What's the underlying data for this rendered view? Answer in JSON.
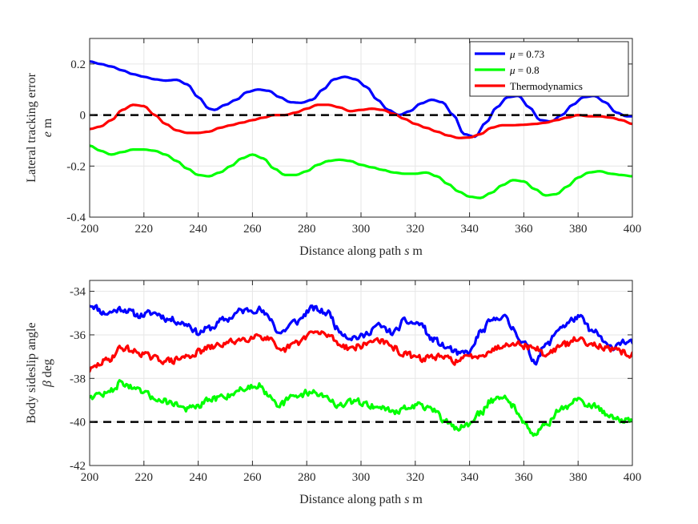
{
  "chart_data": [
    {
      "type": "line",
      "xlabel": "Distance along path",
      "xlabel_symbol": "s",
      "xlabel_unit": "m",
      "ylabel": "Lateral tracking error",
      "ylabel_symbol": "e",
      "ylabel_unit": "m",
      "xlim": [
        200,
        400
      ],
      "ylim": [
        -0.4,
        0.3
      ],
      "xticks": [
        200,
        220,
        240,
        260,
        280,
        300,
        320,
        340,
        360,
        380,
        400
      ],
      "xtick_labels": [
        "200",
        "220",
        "240",
        "260",
        "280",
        "300",
        "320",
        "340",
        "360",
        "380",
        "400"
      ],
      "yticks": [
        -0.4,
        -0.2,
        0,
        0.2
      ],
      "ytick_labels": [
        "-0.4",
        "-0.2",
        "0",
        "0.2"
      ],
      "grid": true,
      "legend_position": "top-right",
      "reference_line": {
        "y": 0,
        "style": "dashed",
        "color": "#000000"
      },
      "series": [
        {
          "name": "μ = 0.73",
          "legend_symbol": "μ",
          "legend_rest": " = 0.73",
          "color": "#0000ff",
          "x": [
            200,
            204,
            208,
            212,
            216,
            220,
            224,
            228,
            232,
            236,
            240,
            244,
            246,
            250,
            254,
            258,
            262,
            266,
            270,
            274,
            278,
            282,
            286,
            290,
            294,
            298,
            302,
            306,
            310,
            314,
            318,
            322,
            326,
            330,
            334,
            338,
            342,
            346,
            350,
            354,
            358,
            362,
            366,
            370,
            374,
            378,
            382,
            386,
            390,
            394,
            398,
            400
          ],
          "y": [
            0.21,
            0.2,
            0.19,
            0.175,
            0.16,
            0.15,
            0.14,
            0.135,
            0.138,
            0.12,
            0.07,
            0.025,
            0.02,
            0.04,
            0.06,
            0.09,
            0.1,
            0.095,
            0.07,
            0.05,
            0.048,
            0.06,
            0.1,
            0.14,
            0.15,
            0.14,
            0.11,
            0.06,
            0.02,
            0.0,
            0.015,
            0.045,
            0.06,
            0.05,
            0.0,
            -0.075,
            -0.085,
            -0.03,
            0.03,
            0.07,
            0.075,
            0.03,
            -0.02,
            -0.025,
            0.0,
            0.04,
            0.07,
            0.075,
            0.05,
            0.01,
            -0.005,
            -0.005
          ]
        },
        {
          "name": "μ = 0.8",
          "legend_symbol": "μ",
          "legend_rest": " = 0.8",
          "color": "#00ff00",
          "x": [
            200,
            204,
            208,
            212,
            216,
            220,
            224,
            228,
            232,
            236,
            240,
            244,
            248,
            252,
            256,
            260,
            264,
            268,
            272,
            276,
            280,
            284,
            288,
            292,
            296,
            300,
            304,
            308,
            312,
            316,
            320,
            324,
            328,
            332,
            336,
            340,
            344,
            348,
            352,
            356,
            360,
            364,
            368,
            372,
            376,
            380,
            384,
            388,
            392,
            396,
            400
          ],
          "y": [
            -0.12,
            -0.14,
            -0.155,
            -0.145,
            -0.135,
            -0.135,
            -0.14,
            -0.155,
            -0.18,
            -0.21,
            -0.235,
            -0.24,
            -0.225,
            -0.2,
            -0.17,
            -0.155,
            -0.17,
            -0.21,
            -0.235,
            -0.235,
            -0.22,
            -0.195,
            -0.18,
            -0.175,
            -0.18,
            -0.195,
            -0.205,
            -0.215,
            -0.225,
            -0.23,
            -0.23,
            -0.225,
            -0.24,
            -0.27,
            -0.3,
            -0.32,
            -0.325,
            -0.305,
            -0.275,
            -0.255,
            -0.26,
            -0.29,
            -0.315,
            -0.31,
            -0.28,
            -0.245,
            -0.225,
            -0.22,
            -0.23,
            -0.235,
            -0.24
          ]
        },
        {
          "name": "Thermodynamics",
          "legend_symbol": "",
          "legend_rest": "Thermodynamics",
          "color": "#ff0000",
          "x": [
            200,
            204,
            208,
            212,
            216,
            220,
            224,
            228,
            232,
            236,
            240,
            244,
            248,
            252,
            256,
            260,
            264,
            268,
            272,
            276,
            280,
            284,
            288,
            292,
            296,
            300,
            304,
            308,
            312,
            316,
            320,
            324,
            328,
            332,
            336,
            340,
            344,
            348,
            352,
            356,
            360,
            364,
            368,
            372,
            376,
            380,
            384,
            388,
            392,
            396,
            400
          ],
          "y": [
            -0.055,
            -0.045,
            -0.02,
            0.02,
            0.04,
            0.035,
            0.0,
            -0.035,
            -0.06,
            -0.07,
            -0.07,
            -0.065,
            -0.05,
            -0.04,
            -0.03,
            -0.02,
            -0.01,
            0.0,
            0.0,
            0.01,
            0.025,
            0.04,
            0.04,
            0.03,
            0.015,
            0.02,
            0.025,
            0.02,
            0.005,
            -0.015,
            -0.035,
            -0.05,
            -0.065,
            -0.08,
            -0.09,
            -0.088,
            -0.075,
            -0.05,
            -0.04,
            -0.04,
            -0.038,
            -0.035,
            -0.03,
            -0.02,
            -0.01,
            0.0,
            -0.005,
            -0.005,
            -0.01,
            -0.02,
            -0.035
          ]
        }
      ]
    },
    {
      "type": "line",
      "xlabel": "Distance along path",
      "xlabel_symbol": "s",
      "xlabel_unit": "m",
      "ylabel": "Body sideslip angle",
      "ylabel_symbol": "β",
      "ylabel_unit": "deg",
      "xlim": [
        200,
        400
      ],
      "ylim": [
        -42,
        -33.5
      ],
      "xticks": [
        200,
        220,
        240,
        260,
        280,
        300,
        320,
        340,
        360,
        380,
        400
      ],
      "xtick_labels": [
        "200",
        "220",
        "240",
        "260",
        "280",
        "300",
        "320",
        "340",
        "360",
        "380",
        "400"
      ],
      "yticks": [
        -42,
        -40,
        -38,
        -36,
        -34
      ],
      "ytick_labels": [
        "-42",
        "-40",
        "-38",
        "-36",
        "-34"
      ],
      "grid": true,
      "reference_line": {
        "y": -40,
        "style": "dashed",
        "color": "#000000"
      },
      "series": [
        {
          "name": "μ = 0.73",
          "color": "#0000ff",
          "noise": 0.22,
          "seed": 11,
          "x": [
            200,
            206,
            212,
            218,
            224,
            230,
            236,
            240,
            244,
            250,
            256,
            262,
            266,
            270,
            276,
            282,
            288,
            292,
            296,
            300,
            306,
            312,
            316,
            322,
            326,
            332,
            336,
            340,
            344,
            348,
            352,
            356,
            360,
            364,
            368,
            374,
            380,
            386,
            392,
            396,
            400
          ],
          "y": [
            -34.6,
            -35.0,
            -34.8,
            -35.1,
            -35.0,
            -35.3,
            -35.5,
            -35.9,
            -35.7,
            -35.3,
            -34.9,
            -34.8,
            -35.2,
            -35.9,
            -35.4,
            -34.8,
            -35.0,
            -35.8,
            -36.1,
            -36.1,
            -35.6,
            -35.9,
            -35.4,
            -35.5,
            -36.2,
            -36.6,
            -36.9,
            -36.8,
            -35.9,
            -35.4,
            -35.1,
            -35.7,
            -36.4,
            -37.2,
            -36.5,
            -35.6,
            -35.2,
            -35.9,
            -36.6,
            -36.3,
            -36.4
          ]
        },
        {
          "name": "Thermodynamics",
          "color": "#ff0000",
          "noise": 0.22,
          "seed": 29,
          "x": [
            200,
            206,
            212,
            218,
            224,
            230,
            236,
            240,
            244,
            250,
            256,
            262,
            266,
            270,
            276,
            282,
            288,
            292,
            296,
            300,
            306,
            312,
            316,
            322,
            326,
            332,
            336,
            340,
            344,
            348,
            352,
            356,
            360,
            364,
            368,
            374,
            380,
            386,
            392,
            396,
            400
          ],
          "y": [
            -37.6,
            -37.2,
            -36.6,
            -36.8,
            -37.1,
            -37.2,
            -37.0,
            -36.8,
            -36.6,
            -36.4,
            -36.2,
            -36.0,
            -36.2,
            -36.8,
            -36.4,
            -35.9,
            -36.0,
            -36.4,
            -36.6,
            -36.5,
            -36.2,
            -36.6,
            -36.9,
            -37.1,
            -37.0,
            -37.1,
            -37.2,
            -37.0,
            -36.9,
            -36.7,
            -36.5,
            -36.3,
            -36.5,
            -36.6,
            -36.9,
            -36.5,
            -36.2,
            -36.4,
            -36.7,
            -36.8,
            -36.9
          ]
        },
        {
          "name": "μ = 0.8",
          "color": "#00ff00",
          "noise": 0.22,
          "seed": 47,
          "x": [
            200,
            206,
            212,
            218,
            224,
            230,
            236,
            240,
            244,
            250,
            256,
            262,
            266,
            270,
            276,
            282,
            288,
            292,
            296,
            300,
            306,
            312,
            316,
            322,
            326,
            332,
            336,
            340,
            344,
            348,
            352,
            356,
            360,
            364,
            368,
            374,
            380,
            386,
            392,
            396,
            400
          ],
          "y": [
            -38.8,
            -38.7,
            -38.2,
            -38.6,
            -38.9,
            -39.1,
            -39.4,
            -39.3,
            -39.0,
            -38.8,
            -38.5,
            -38.3,
            -38.7,
            -39.2,
            -38.8,
            -38.6,
            -38.9,
            -39.3,
            -39.1,
            -39.1,
            -39.3,
            -39.5,
            -39.4,
            -39.2,
            -39.5,
            -40.0,
            -40.3,
            -40.1,
            -39.6,
            -39.0,
            -38.8,
            -39.3,
            -39.9,
            -40.6,
            -40.1,
            -39.4,
            -39.0,
            -39.3,
            -39.7,
            -39.9,
            -40.0
          ]
        }
      ]
    }
  ]
}
